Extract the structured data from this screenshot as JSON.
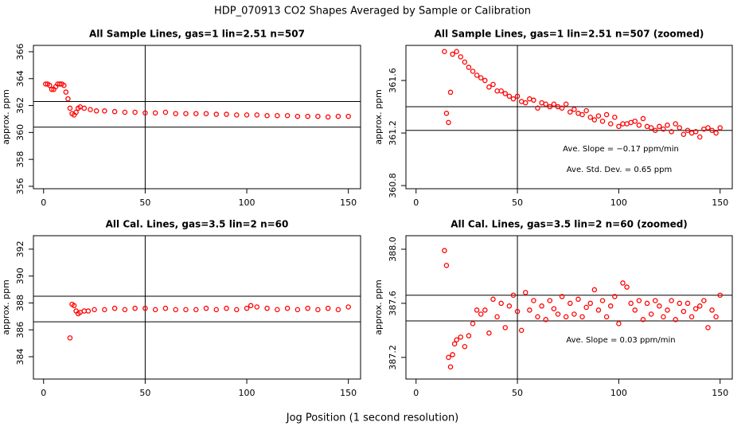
{
  "title": "HDP_070913  CO2 Shapes Averaged by Sample or Calibration",
  "xlabel": "Jog Position (1 second resolution)",
  "chart_data": [
    {
      "type": "scatter",
      "title": "All Sample Lines, gas=1 lin=2.51 n=507",
      "ylabel": "approx. ppm",
      "color": "#ff0000",
      "xlim": [
        -5,
        156
      ],
      "ylim": [
        355.82,
        366.47
      ],
      "xticks": [
        0,
        50,
        100,
        150
      ],
      "yticks": [
        356,
        358,
        360,
        362,
        364,
        366
      ],
      "hlines": [
        362.3,
        360.4
      ],
      "vlines": [
        50
      ],
      "annotations": [],
      "x": [
        1,
        2,
        3,
        4,
        5,
        6,
        7,
        8,
        9,
        10,
        11,
        12,
        13,
        14,
        15,
        16,
        17,
        18,
        20,
        23,
        26,
        30,
        35,
        40,
        45,
        50,
        55,
        60,
        65,
        70,
        75,
        80,
        85,
        90,
        95,
        100,
        105,
        110,
        115,
        120,
        125,
        130,
        135,
        140,
        145,
        150
      ],
      "y": [
        363.6,
        363.6,
        363.5,
        363.2,
        363.2,
        363.4,
        363.6,
        363.6,
        363.6,
        363.5,
        363.0,
        362.5,
        361.8,
        361.4,
        361.3,
        361.5,
        361.8,
        361.9,
        361.8,
        361.7,
        361.6,
        361.6,
        361.55,
        361.5,
        361.5,
        361.45,
        361.45,
        361.5,
        361.4,
        361.4,
        361.4,
        361.4,
        361.35,
        361.35,
        361.3,
        361.3,
        361.3,
        361.25,
        361.25,
        361.25,
        361.2,
        361.2,
        361.2,
        361.15,
        361.2,
        361.2
      ]
    },
    {
      "type": "scatter",
      "title": "All Sample Lines, gas=1 lin=2.51 n=507 (zoomed)",
      "ylabel": "approx. ppm",
      "color": "#ff0000",
      "xlim": [
        -5,
        156
      ],
      "ylim": [
        360.776,
        361.867
      ],
      "xticks": [
        0,
        50,
        100,
        150
      ],
      "yticks": [
        360.8,
        361.2,
        361.6
      ],
      "hlines": [
        361.4,
        361.22
      ],
      "vlines": [
        50
      ],
      "annotations": [
        "Ave. Slope =  −0.17  ppm/min",
        "Ave. Std. Dev. =  0.65  ppm"
      ],
      "x": [
        14,
        15,
        16,
        17,
        18,
        20,
        22,
        24,
        26,
        28,
        30,
        32,
        34,
        36,
        38,
        40,
        42,
        44,
        46,
        48,
        50,
        52,
        54,
        56,
        58,
        60,
        62,
        64,
        66,
        68,
        70,
        72,
        74,
        76,
        78,
        80,
        82,
        84,
        86,
        88,
        90,
        92,
        94,
        96,
        98,
        100,
        102,
        104,
        106,
        108,
        110,
        112,
        114,
        116,
        118,
        120,
        122,
        124,
        126,
        128,
        130,
        132,
        134,
        136,
        138,
        140,
        142,
        144,
        146,
        148,
        150
      ],
      "y": [
        361.82,
        361.35,
        361.28,
        361.51,
        361.8,
        361.82,
        361.78,
        361.74,
        361.7,
        361.67,
        361.64,
        361.62,
        361.6,
        361.55,
        361.57,
        361.52,
        361.52,
        361.5,
        361.48,
        361.46,
        361.48,
        361.44,
        361.43,
        361.46,
        361.45,
        361.39,
        361.43,
        361.42,
        361.4,
        361.42,
        361.4,
        361.39,
        361.42,
        361.36,
        361.38,
        361.35,
        361.34,
        361.37,
        361.32,
        361.3,
        361.33,
        361.29,
        361.34,
        361.27,
        361.32,
        361.25,
        361.27,
        361.27,
        361.28,
        361.29,
        361.26,
        361.31,
        361.25,
        361.24,
        361.22,
        361.25,
        361.23,
        361.26,
        361.21,
        361.27,
        361.24,
        361.19,
        361.22,
        361.2,
        361.21,
        361.17,
        361.23,
        361.24,
        361.22,
        361.2,
        361.24
      ]
    },
    {
      "type": "scatter",
      "title": "All Cal. Lines, gas=3.5 lin=2 n=60",
      "ylabel": "approx. ppm",
      "color": "#ff0000",
      "xlim": [
        -5,
        156
      ],
      "ylim": [
        382.34,
        393.0
      ],
      "xticks": [
        0,
        50,
        100,
        150
      ],
      "yticks": [
        384,
        386,
        388,
        390,
        392
      ],
      "hlines": [
        388.5,
        386.6
      ],
      "vlines": [
        50
      ],
      "annotations": [],
      "x": [
        13,
        14,
        15,
        16,
        17,
        18,
        20,
        22,
        25,
        30,
        35,
        40,
        45,
        50,
        55,
        60,
        65,
        70,
        75,
        80,
        85,
        90,
        95,
        100,
        102,
        105,
        110,
        115,
        120,
        125,
        130,
        135,
        140,
        145,
        150
      ],
      "y": [
        385.4,
        387.9,
        387.8,
        387.4,
        387.2,
        387.3,
        387.4,
        387.4,
        387.5,
        387.5,
        387.6,
        387.5,
        387.6,
        387.6,
        387.5,
        387.6,
        387.5,
        387.5,
        387.5,
        387.6,
        387.5,
        387.6,
        387.5,
        387.6,
        387.8,
        387.7,
        387.6,
        387.5,
        387.6,
        387.5,
        387.6,
        387.5,
        387.6,
        387.5,
        387.7
      ]
    },
    {
      "type": "scatter",
      "title": "All Cal. Lines, gas=3.5 lin=2 n=60 (zoomed)",
      "ylabel": "approx. ppm",
      "color": "#ff0000",
      "xlim": [
        -5,
        156
      ],
      "ylim": [
        387.04,
        388.1
      ],
      "xticks": [
        0,
        50,
        100,
        150
      ],
      "yticks": [
        387.2,
        387.6,
        {
          "value": 388,
          "label": "388.0"
        }
      ],
      "hlines": [
        387.66,
        387.47
      ],
      "vlines": [
        50
      ],
      "annotations": [
        "Ave. Slope =  0.03  ppm/min"
      ],
      "x": [
        14,
        15,
        16,
        17,
        18,
        19,
        20,
        22,
        24,
        26,
        28,
        30,
        32,
        34,
        36,
        38,
        40,
        42,
        44,
        46,
        48,
        50,
        52,
        54,
        56,
        58,
        60,
        62,
        64,
        66,
        68,
        70,
        72,
        74,
        76,
        78,
        80,
        82,
        84,
        86,
        88,
        90,
        92,
        94,
        96,
        98,
        100,
        102,
        104,
        106,
        108,
        110,
        112,
        114,
        116,
        118,
        120,
        122,
        124,
        126,
        128,
        130,
        132,
        134,
        136,
        138,
        140,
        142,
        144,
        146,
        148,
        150
      ],
      "y": [
        387.99,
        387.88,
        387.2,
        387.13,
        387.22,
        387.3,
        387.33,
        387.35,
        387.28,
        387.36,
        387.45,
        387.55,
        387.52,
        387.55,
        387.38,
        387.63,
        387.5,
        387.6,
        387.42,
        387.58,
        387.66,
        387.54,
        387.4,
        387.68,
        387.55,
        387.62,
        387.5,
        387.58,
        387.48,
        387.62,
        387.56,
        387.52,
        387.65,
        387.5,
        387.6,
        387.52,
        387.63,
        387.5,
        387.57,
        387.6,
        387.7,
        387.55,
        387.62,
        387.5,
        387.58,
        387.65,
        387.45,
        387.75,
        387.72,
        387.6,
        387.55,
        387.62,
        387.48,
        387.6,
        387.52,
        387.62,
        387.58,
        387.5,
        387.55,
        387.62,
        387.48,
        387.6,
        387.54,
        387.6,
        387.5,
        387.56,
        387.58,
        387.62,
        387.42,
        387.55,
        387.5,
        387.66
      ]
    }
  ]
}
